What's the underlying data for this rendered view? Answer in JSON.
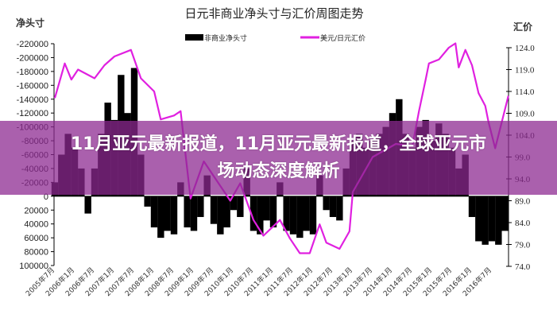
{
  "overlay": {
    "headline": "11月亚元最新报道，11月亚元最新报道，全球亚元市场动态深度解析"
  },
  "chart_data": {
    "type": "bar+line",
    "title": "日元非商业净头寸与汇价周图走势",
    "ylabel_left": "净头寸",
    "ylabel_right": "汇价",
    "legend": {
      "placement": "top",
      "entries": [
        "非商业净头寸",
        "美元/日元汇价"
      ]
    },
    "colors": {
      "bars": "#000000",
      "line": "#e020e0"
    },
    "left_axis": {
      "range": [
        -220000,
        100000
      ],
      "inverted": true,
      "ticks": [
        "-220000",
        "-200000",
        "-180000",
        "-160000",
        "-140000",
        "-120000",
        "-100000",
        "-80000",
        "-60000",
        "-40000",
        "-20000",
        "0",
        "20000",
        "40000",
        "60000",
        "80000",
        "100000"
      ]
    },
    "right_axis": {
      "range": [
        74,
        124
      ],
      "ticks": [
        "124.0",
        "119.0",
        "114.0",
        "109.0",
        "104.0",
        "99.0",
        "94.0",
        "89.0",
        "84.0",
        "79.0",
        "74.0"
      ]
    },
    "x_ticks": [
      "2005年7月",
      "2006年1月",
      "2006年7月",
      "2007年1月",
      "2007年7月",
      "2008年1月",
      "2008年7月",
      "2009年1月",
      "2009年7月",
      "2010年1月",
      "2010年7月",
      "2011年1月",
      "2011年7月",
      "2012年1月",
      "2012年7月",
      "2013年1月",
      "2013年7月",
      "2014年1月",
      "2014年7月",
      "2015年1月",
      "2015年7月",
      "2016年1月",
      "2016年7月"
    ],
    "series": [
      {
        "name": "非商业净头寸",
        "type": "bar",
        "x": [
          "2005-07",
          "2005-09",
          "2005-11",
          "2006-01",
          "2006-03",
          "2006-05",
          "2006-07",
          "2006-09",
          "2006-11",
          "2007-01",
          "2007-03",
          "2007-05",
          "2007-07",
          "2007-09",
          "2007-11",
          "2008-01",
          "2008-03",
          "2008-05",
          "2008-07",
          "2008-09",
          "2008-11",
          "2009-01",
          "2009-03",
          "2009-05",
          "2009-07",
          "2009-09",
          "2009-11",
          "2010-01",
          "2010-03",
          "2010-05",
          "2010-07",
          "2010-09",
          "2010-11",
          "2011-01",
          "2011-03",
          "2011-05",
          "2011-07",
          "2011-09",
          "2011-11",
          "2012-01",
          "2012-03",
          "2012-05",
          "2012-07",
          "2012-09",
          "2012-11",
          "2013-01",
          "2013-03",
          "2013-05",
          "2013-07",
          "2013-09",
          "2013-11",
          "2014-01",
          "2014-03",
          "2014-05",
          "2014-07",
          "2014-09",
          "2014-11",
          "2015-01",
          "2015-03",
          "2015-05",
          "2015-07",
          "2015-09",
          "2015-11",
          "2016-01",
          "2016-03",
          "2016-05",
          "2016-07",
          "2016-09",
          "2016-11"
        ],
        "values": [
          -20000,
          -60000,
          -90000,
          -70000,
          -40000,
          25000,
          -40000,
          -90000,
          -135000,
          -110000,
          -175000,
          -120000,
          -185000,
          -60000,
          15000,
          45000,
          60000,
          50000,
          55000,
          -20000,
          45000,
          50000,
          30000,
          -30000,
          40000,
          55000,
          45000,
          20000,
          30000,
          -40000,
          50000,
          55000,
          35000,
          45000,
          -20000,
          50000,
          55000,
          60000,
          50000,
          55000,
          -30000,
          20000,
          30000,
          35000,
          -40000,
          -80000,
          -90000,
          -70000,
          -80000,
          -90000,
          -100000,
          -120000,
          -140000,
          -90000,
          -70000,
          -100000,
          -110000,
          -80000,
          -105000,
          -90000,
          -70000,
          -40000,
          -60000,
          30000,
          65000,
          70000,
          65000,
          70000,
          50000
        ]
      },
      {
        "name": "美元/日元汇价",
        "type": "line",
        "x": [
          "2005-07",
          "2005-10",
          "2005-12",
          "2006-02",
          "2006-07",
          "2006-10",
          "2007-01",
          "2007-06",
          "2007-09",
          "2008-01",
          "2008-03",
          "2008-07",
          "2008-09",
          "2008-12",
          "2009-04",
          "2009-12",
          "2010-03",
          "2010-07",
          "2010-10",
          "2011-03",
          "2011-06",
          "2011-09",
          "2011-12",
          "2012-03",
          "2012-05",
          "2012-09",
          "2012-12",
          "2013-01",
          "2013-07",
          "2014-02",
          "2014-07",
          "2014-09",
          "2014-11",
          "2014-12",
          "2015-03",
          "2015-06",
          "2015-08",
          "2015-09",
          "2015-11",
          "2016-01",
          "2016-03",
          "2016-05",
          "2016-06",
          "2016-08",
          "2016-12"
        ],
        "values": [
          112.5,
          120.4,
          116.7,
          119,
          117,
          120,
          122,
          123.5,
          117,
          114,
          107.6,
          108.5,
          109.5,
          89.5,
          98,
          89,
          93,
          84.6,
          81,
          84.6,
          80.4,
          77,
          77,
          83.6,
          79.4,
          78,
          82,
          91,
          99,
          102,
          101.5,
          109.5,
          116.7,
          120.4,
          121.3,
          124,
          125,
          119.5,
          123.5,
          120,
          113.6,
          110.7,
          107,
          101,
          113
        ]
      }
    ]
  }
}
